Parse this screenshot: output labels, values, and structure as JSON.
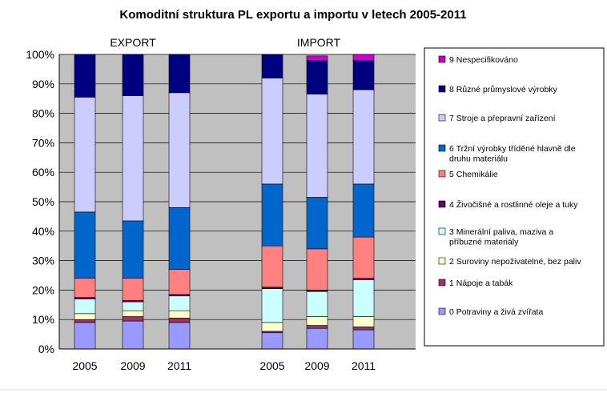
{
  "chart_data": {
    "type": "bar",
    "stacked": true,
    "normalized_percent": true,
    "title": "Komoditní struktura PL exportu a importu v letech 2005-2011",
    "groups": [
      {
        "label": "EXPORT",
        "categories": [
          "2005",
          "2009",
          "2011"
        ]
      },
      {
        "label": "IMPORT",
        "categories": [
          "2005",
          "2009",
          "2011"
        ]
      }
    ],
    "categories": [
      "2005",
      "2009",
      "2011",
      "2005",
      "2009",
      "2011"
    ],
    "ylim": [
      0,
      100
    ],
    "yticks": [
      "0%",
      "10%",
      "20%",
      "30%",
      "40%",
      "50%",
      "60%",
      "70%",
      "80%",
      "90%",
      "100%"
    ],
    "grid": true,
    "legend_position": "right",
    "series": [
      {
        "name": "0 Potraviny a živá zvířata",
        "color": "#9999ff",
        "values": [
          9,
          9.5,
          9,
          5.5,
          7,
          6.5
        ]
      },
      {
        "name": "1 Nápoje a tabák",
        "color": "#993366",
        "values": [
          1,
          1.5,
          1.5,
          0.5,
          1,
          1
        ]
      },
      {
        "name": "2 Suroviny nepoživatelné, bez paliv",
        "color": "#ffffcc",
        "values": [
          2,
          2,
          2.5,
          3,
          3,
          3.5
        ]
      },
      {
        "name": "3 Minerální paliva, maziva a příbuzné materiály",
        "color": "#ccffff",
        "values": [
          5,
          3,
          5,
          11.5,
          8.5,
          12.5
        ]
      },
      {
        "name": "4 Živočišné a rostlinné oleje a tuky",
        "color": "#660066",
        "values": [
          0.5,
          0.5,
          0.5,
          0.5,
          0.5,
          0.5
        ]
      },
      {
        "name": "5 Chemikálie",
        "color": "#ff8080",
        "values": [
          6.5,
          7.5,
          8.5,
          14,
          14,
          14
        ]
      },
      {
        "name": "6 Tržní výrobky tříděné hlavně dle druhu materiálu",
        "color": "#0066cc",
        "values": [
          22.5,
          19.5,
          21,
          21,
          17.5,
          18
        ]
      },
      {
        "name": "7 Stroje a přepravní zařízení",
        "color": "#ccccff",
        "values": [
          39,
          42.5,
          39,
          36,
          35,
          32
        ]
      },
      {
        "name": "8 Různé průmyslové výrobky",
        "color": "#000080",
        "values": [
          14.5,
          14,
          13,
          8,
          11.5,
          10
        ]
      },
      {
        "name": "9 Nespecifikováno",
        "color": "#cc00cc",
        "values": [
          0,
          0,
          0,
          0,
          1.5,
          2
        ]
      }
    ]
  }
}
